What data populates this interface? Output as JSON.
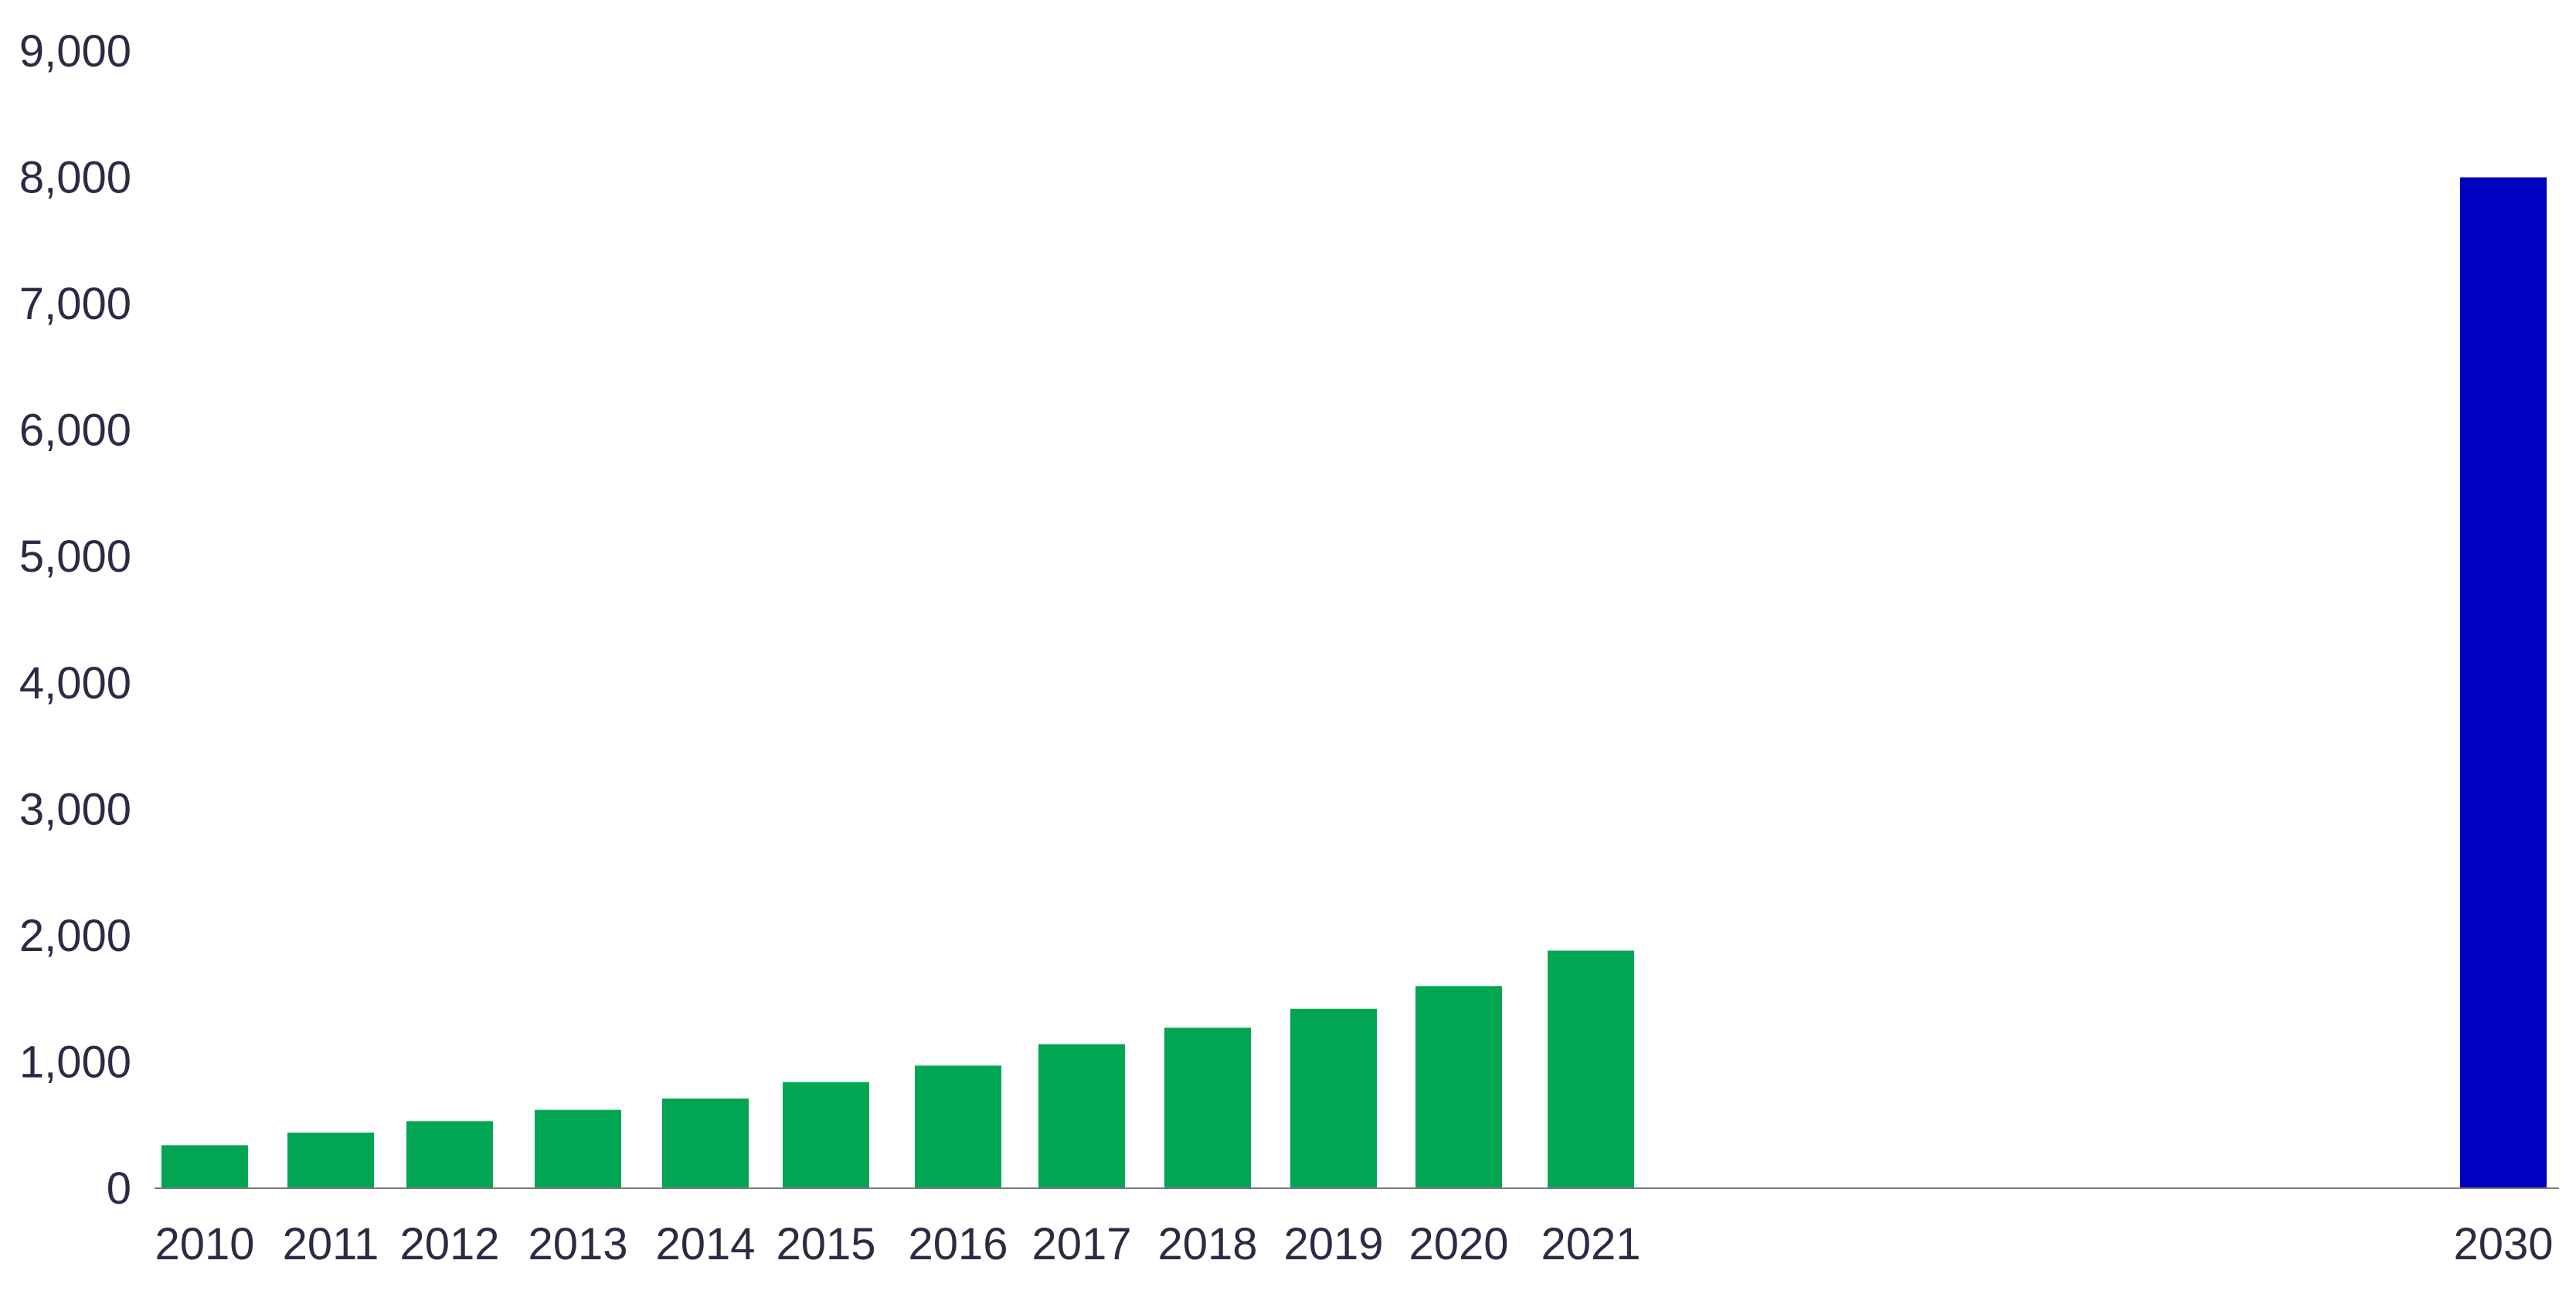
{
  "chart_data": {
    "type": "bar",
    "title": "",
    "xlabel": "",
    "ylabel": "",
    "ylim": [
      0,
      9000
    ],
    "yticks": [
      "0",
      "1,000",
      "2,000",
      "3,000",
      "4,000",
      "5,000",
      "6,000",
      "7,000",
      "8,000",
      "9,000"
    ],
    "ytick_values": [
      0,
      1000,
      2000,
      3000,
      4000,
      5000,
      6000,
      7000,
      8000,
      9000
    ],
    "grid": false,
    "categories": [
      "2010",
      "2011",
      "2012",
      "2013",
      "2014",
      "2015",
      "2016",
      "2017",
      "2018",
      "2019",
      "2020",
      "2021",
      "2030"
    ],
    "values": [
      340,
      440,
      530,
      620,
      710,
      840,
      970,
      1140,
      1270,
      1420,
      1600,
      1880,
      8000
    ],
    "colors": [
      "#00a651",
      "#00a651",
      "#00a651",
      "#00a651",
      "#00a651",
      "#00a651",
      "#00a651",
      "#00a651",
      "#00a651",
      "#00a651",
      "#00a651",
      "#00a651",
      "#0000c0"
    ]
  }
}
